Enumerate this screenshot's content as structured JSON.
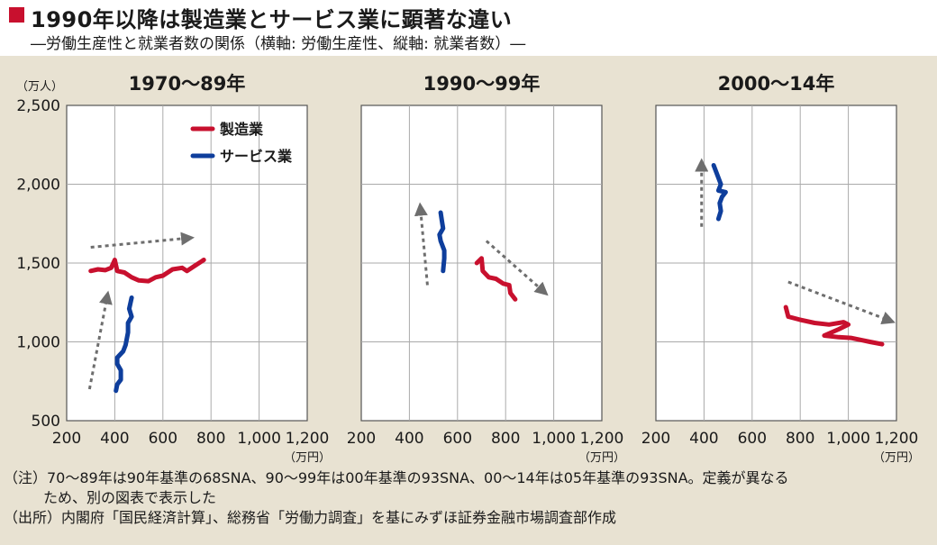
{
  "header": {
    "title": "1990年以降は製造業とサービス業に顕著な違い",
    "subtitle": "―労働生産性と就業者数の関係（横軸: 労働生産性、縦軸: 就業者数）―"
  },
  "notes": {
    "line1": "（注）70〜89年は90年基準の68SNA、90〜99年は00年基準の93SNA、00〜14年は05年基準の93SNA。定義が異なる",
    "line2": "ため、別の図表で表示した",
    "line3": "（出所）内閣府「国民経済計算」、総務省「労働力調査」を基にみずほ証券金融市場調査部作成"
  },
  "chart_data": {
    "type": "line",
    "xlim": [
      200,
      1200
    ],
    "ylim": [
      500,
      2500
    ],
    "x_ticks": [
      "200",
      "400",
      "600",
      "800",
      "1,000",
      "1,200"
    ],
    "y_ticks": [
      "500",
      "1,000",
      "1,500",
      "2,000",
      "2,500"
    ],
    "x_unit": "（万円）",
    "y_unit": "（万人）",
    "grid": true,
    "legend_position": "top-right",
    "colors": {
      "manufacturing": "#c8102e",
      "services": "#0e3e9c",
      "arrow": "#6e6e6e"
    },
    "panels": [
      {
        "title": "1970〜89年",
        "series": [
          {
            "name": "製造業",
            "key": "manufacturing",
            "points": [
              [
                300,
                1450
              ],
              [
                330,
                1460
              ],
              [
                360,
                1455
              ],
              [
                385,
                1470
              ],
              [
                400,
                1520
              ],
              [
                410,
                1450
              ],
              [
                440,
                1440
              ],
              [
                470,
                1410
              ],
              [
                500,
                1390
              ],
              [
                540,
                1385
              ],
              [
                570,
                1410
              ],
              [
                600,
                1420
              ],
              [
                640,
                1460
              ],
              [
                680,
                1470
              ],
              [
                700,
                1450
              ],
              [
                730,
                1480
              ],
              [
                760,
                1510
              ],
              [
                770,
                1520
              ]
            ]
          },
          {
            "name": "サービス業",
            "key": "services",
            "points": [
              [
                405,
                690
              ],
              [
                410,
                730
              ],
              [
                425,
                760
              ],
              [
                425,
                820
              ],
              [
                410,
                860
              ],
              [
                410,
                900
              ],
              [
                435,
                940
              ],
              [
                445,
                980
              ],
              [
                455,
                1060
              ],
              [
                455,
                1120
              ],
              [
                470,
                1160
              ],
              [
                460,
                1210
              ],
              [
                470,
                1280
              ]
            ]
          }
        ],
        "arrows": [
          [
            [
              300,
              1600
            ],
            [
              715,
              1660
            ]
          ],
          [
            [
              295,
              700
            ],
            [
              370,
              1300
            ]
          ]
        ]
      },
      {
        "title": "1990〜99年",
        "series": [
          {
            "name": "製造業",
            "key": "manufacturing",
            "points": [
              [
                680,
                1500
              ],
              [
                700,
                1530
              ],
              [
                705,
                1450
              ],
              [
                730,
                1410
              ],
              [
                760,
                1400
              ],
              [
                790,
                1370
              ],
              [
                815,
                1360
              ],
              [
                820,
                1310
              ],
              [
                840,
                1270
              ]
            ]
          },
          {
            "name": "サービス業",
            "key": "services",
            "points": [
              [
                530,
                1820
              ],
              [
                535,
                1770
              ],
              [
                540,
                1720
              ],
              [
                525,
                1680
              ],
              [
                530,
                1640
              ],
              [
                545,
                1580
              ],
              [
                545,
                1530
              ],
              [
                540,
                1450
              ]
            ]
          }
        ],
        "arrows": [
          [
            [
              475,
              1360
            ],
            [
              445,
              1860
            ]
          ],
          [
            [
              720,
              1640
            ],
            [
              965,
              1310
            ]
          ]
        ]
      },
      {
        "title": "2000〜14年",
        "series": [
          {
            "name": "製造業",
            "key": "manufacturing",
            "points": [
              [
                740,
                1220
              ],
              [
                750,
                1160
              ],
              [
                800,
                1140
              ],
              [
                860,
                1120
              ],
              [
                920,
                1110
              ],
              [
                980,
                1125
              ],
              [
                1000,
                1110
              ],
              [
                960,
                1080
              ],
              [
                900,
                1040
              ],
              [
                960,
                1030
              ],
              [
                1010,
                1025
              ],
              [
                1060,
                1010
              ],
              [
                1090,
                1000
              ],
              [
                1140,
                985
              ]
            ]
          },
          {
            "name": "サービス業",
            "key": "services",
            "points": [
              [
                440,
                2120
              ],
              [
                455,
                2060
              ],
              [
                470,
                2000
              ],
              [
                460,
                1960
              ],
              [
                490,
                1950
              ],
              [
                475,
                1920
              ],
              [
                465,
                1880
              ],
              [
                470,
                1830
              ],
              [
                460,
                1780
              ]
            ]
          }
        ],
        "arrows": [
          [
            [
              390,
              1730
            ],
            [
              390,
              2140
            ]
          ],
          [
            [
              750,
              1380
            ],
            [
              1180,
              1130
            ]
          ]
        ]
      }
    ]
  }
}
